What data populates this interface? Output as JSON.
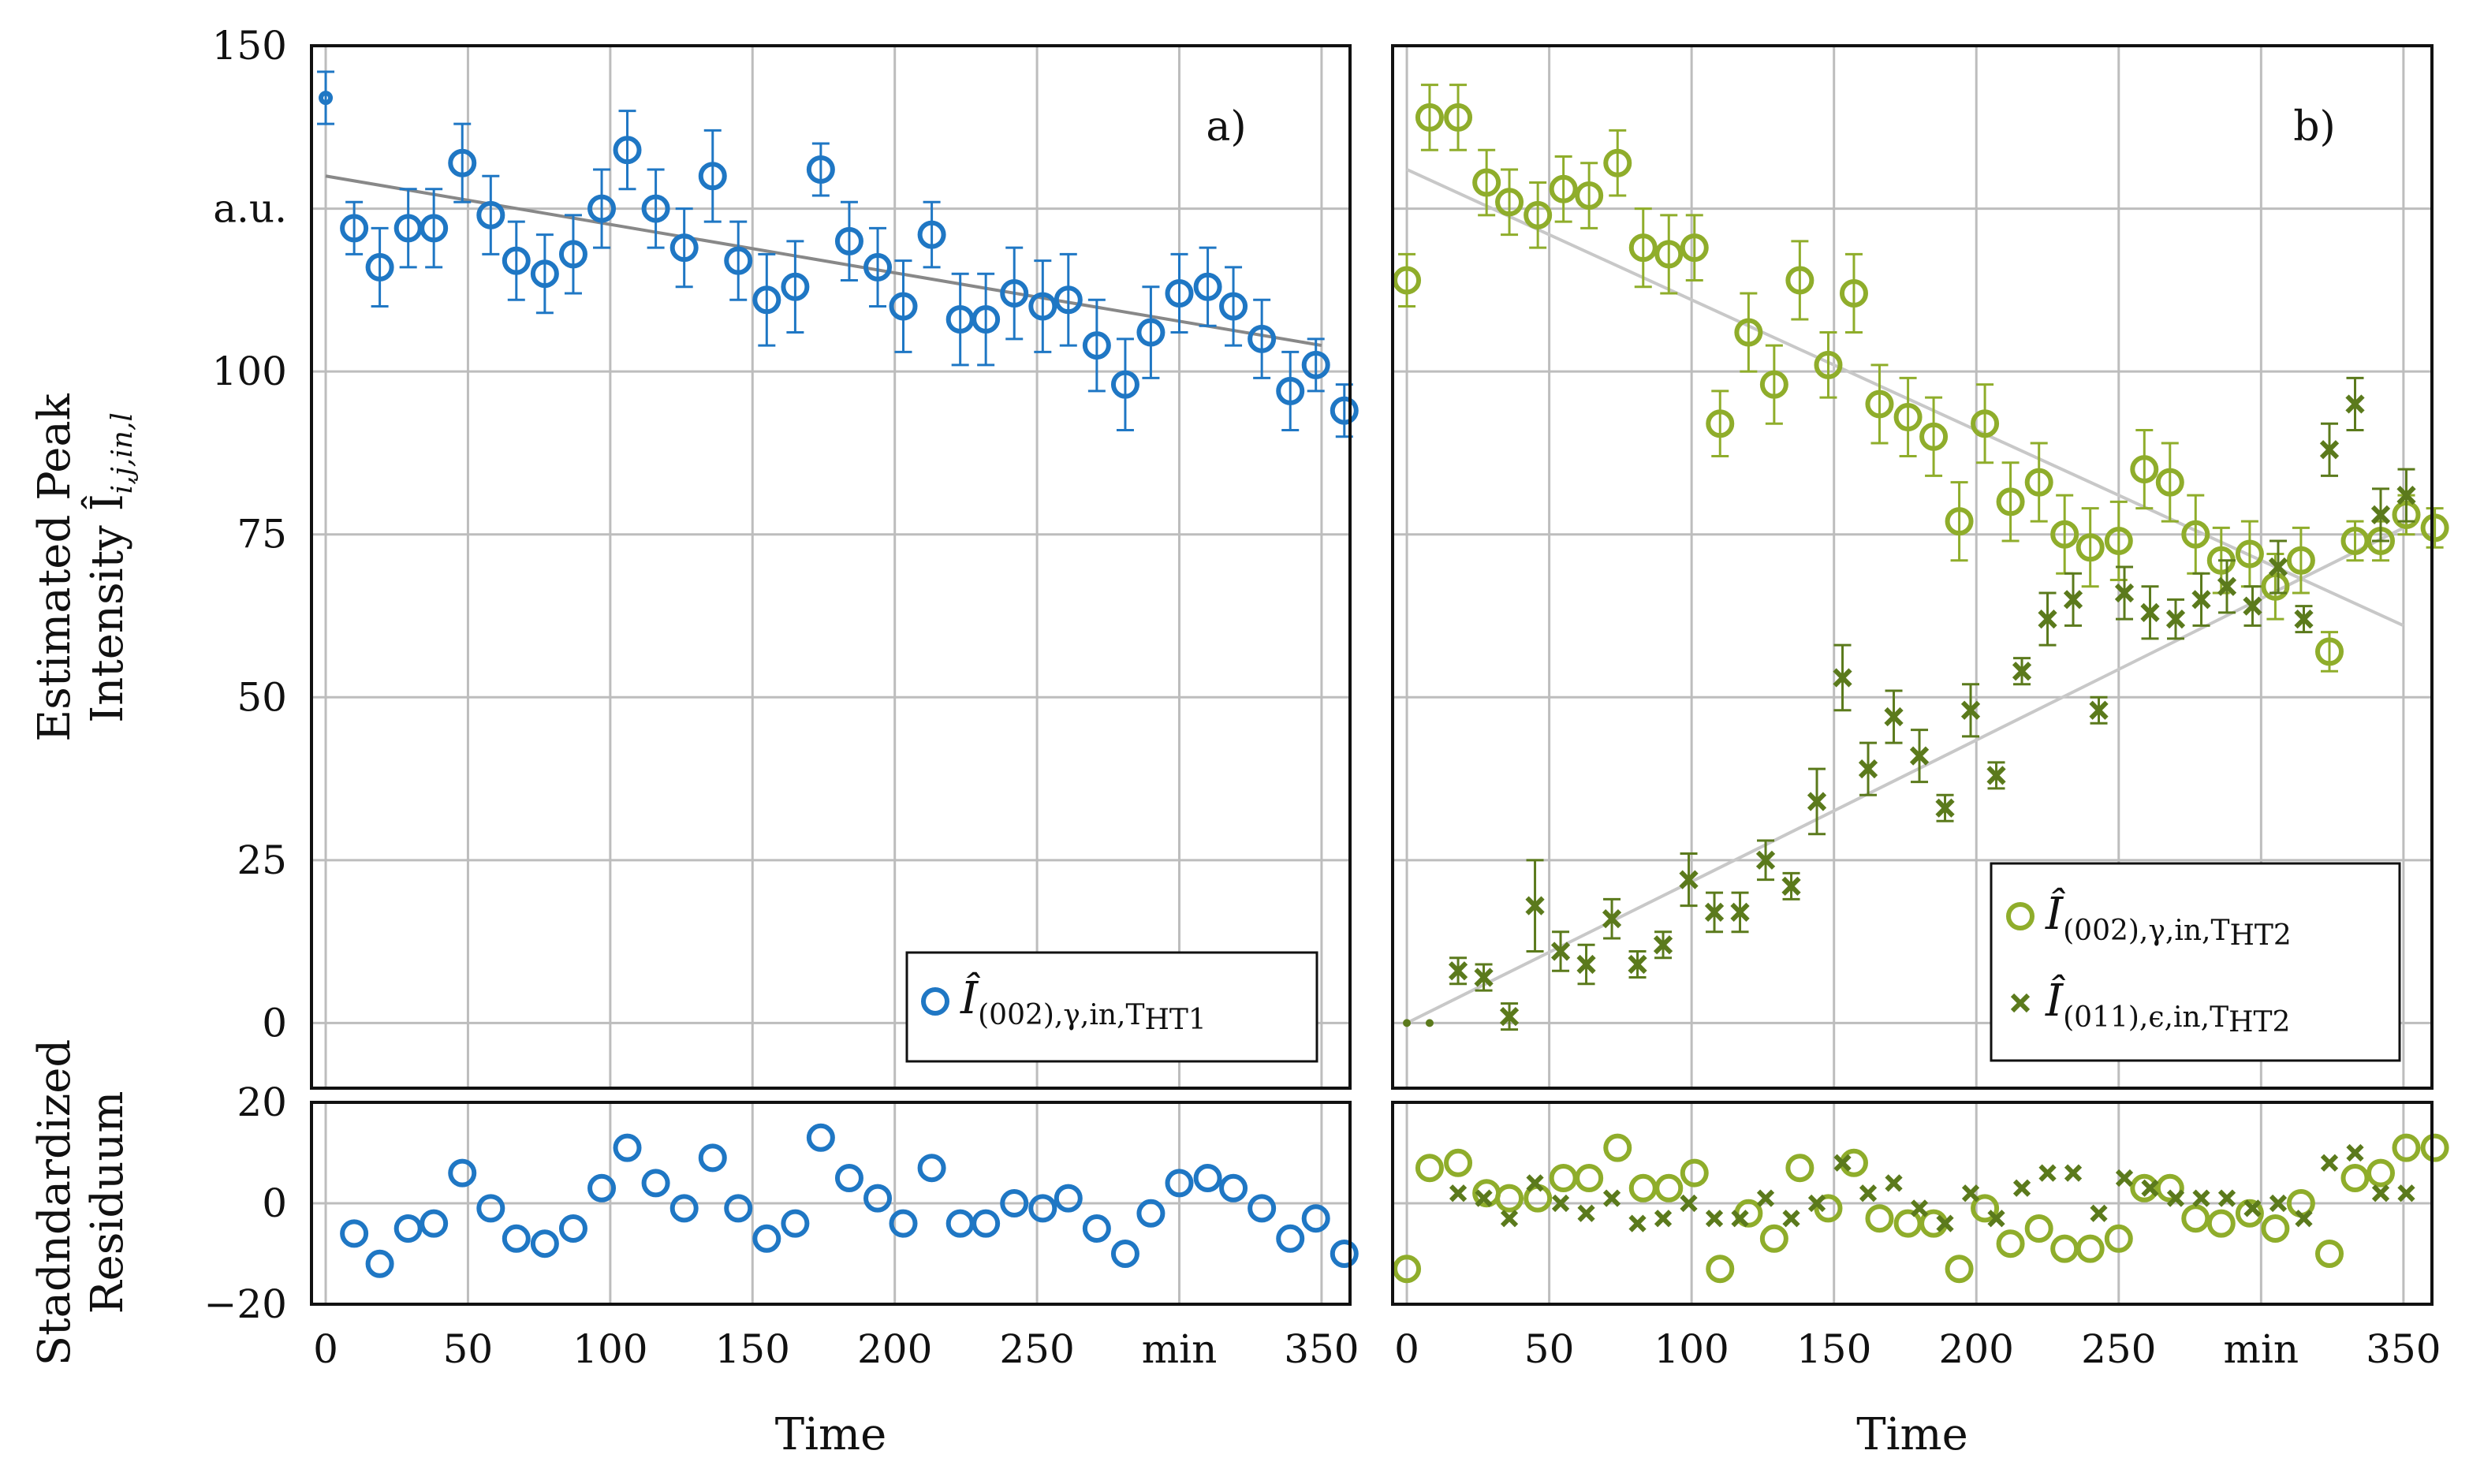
{
  "chart_data": [
    {
      "type": "scatter",
      "panel_label": "a)",
      "xlabel": "Time",
      "x_unit_tick": "min",
      "ylabel_line1": "Estimated Peak",
      "ylabel_line2": "Intensity Î",
      "ylabel_sub": "i,j,in,l",
      "y_unit_tick": "a.u.",
      "xlim": [
        -5,
        360
      ],
      "ylim": [
        -10,
        150
      ],
      "xticks": [
        "0",
        "50",
        "100",
        "150",
        "200",
        "250",
        "min",
        "350"
      ],
      "yticks": [
        "0",
        "25",
        "50",
        "75",
        "100",
        "a.u.",
        "150"
      ],
      "residual_ylabel_line1": "Stadndardized",
      "residual_ylabel_line2": "Residuum",
      "residual_ylim": [
        -20,
        20
      ],
      "residual_yticks": [
        "−20",
        "0",
        "20"
      ],
      "legend_position": "bottom-right",
      "series": [
        {
          "name": "Î(002),γ,in,THT1",
          "legend_main": "Î",
          "legend_sub": "(002),γ,in,T",
          "legend_subsub": "HT1",
          "marker": "circle",
          "color": "#1f77c4",
          "x": [
            0,
            10,
            19,
            29,
            38,
            48,
            58,
            67,
            77,
            87,
            97,
            106,
            116,
            126,
            136,
            145,
            155,
            165,
            174,
            184,
            194,
            203,
            213,
            223,
            232,
            242,
            252,
            261,
            271,
            281,
            290,
            300,
            310,
            319,
            329,
            339,
            348,
            358
          ],
          "y": [
            142,
            122,
            116,
            122,
            122,
            132,
            124,
            117,
            115,
            118,
            125,
            134,
            125,
            119,
            130,
            117,
            111,
            113,
            131,
            120,
            116,
            110,
            121,
            108,
            108,
            112,
            110,
            111,
            104,
            98,
            106,
            112,
            113,
            110,
            105,
            97,
            101,
            94
          ],
          "err": [
            4,
            4,
            6,
            6,
            6,
            6,
            6,
            6,
            6,
            6,
            6,
            6,
            6,
            6,
            7,
            6,
            7,
            7,
            4,
            6,
            6,
            7,
            5,
            7,
            7,
            7,
            7,
            7,
            7,
            7,
            7,
            6,
            6,
            6,
            6,
            6,
            4,
            4
          ],
          "residuals": [
            null,
            -6,
            -12,
            -5,
            -4,
            6,
            -1,
            -7,
            -8,
            -5,
            3,
            11,
            4,
            -1,
            9,
            -1,
            -7,
            -4,
            13,
            5,
            1,
            -4,
            7,
            -4,
            -4,
            0,
            -1,
            1,
            -5,
            -10,
            -2,
            4,
            5,
            3,
            -1,
            -7,
            -3,
            -10
          ],
          "fit_line": {
            "x": [
              0,
              350
            ],
            "y": [
              130,
              104
            ]
          }
        }
      ]
    },
    {
      "type": "scatter",
      "panel_label": "b)",
      "xlabel": "Time",
      "x_unit_tick": "min",
      "xlim": [
        -5,
        360
      ],
      "ylim": [
        -10,
        150
      ],
      "xticks": [
        "0",
        "50",
        "100",
        "150",
        "200",
        "250",
        "min",
        "350"
      ],
      "residual_ylim": [
        -20,
        20
      ],
      "legend_position": "bottom-right",
      "series": [
        {
          "name": "Î(002),γ,in,THT2",
          "legend_main": "Î",
          "legend_sub": "(002),γ,in,T",
          "legend_subsub": "HT2",
          "marker": "circle",
          "color": "#8fad2b",
          "x": [
            0,
            8,
            18,
            28,
            36,
            46,
            55,
            64,
            74,
            83,
            92,
            101,
            110,
            120,
            129,
            138,
            148,
            157,
            166,
            176,
            185,
            194,
            203,
            212,
            222,
            231,
            240,
            250,
            259,
            268,
            277,
            286,
            296,
            305,
            314,
            324,
            333,
            342,
            351,
            361
          ],
          "y": [
            114,
            139,
            139,
            129,
            126,
            124,
            128,
            127,
            132,
            119,
            118,
            119,
            92,
            106,
            98,
            114,
            101,
            112,
            95,
            93,
            90,
            77,
            92,
            80,
            83,
            75,
            73,
            74,
            85,
            83,
            75,
            71,
            72,
            67,
            71,
            57,
            74,
            74,
            78,
            76
          ],
          "err": [
            4,
            5,
            5,
            5,
            5,
            5,
            5,
            5,
            5,
            6,
            6,
            5,
            5,
            6,
            6,
            6,
            5,
            6,
            6,
            6,
            6,
            6,
            6,
            6,
            6,
            6,
            6,
            6,
            6,
            6,
            6,
            5,
            5,
            5,
            5,
            3,
            3,
            3,
            3,
            3
          ],
          "residuals": [
            -13,
            7,
            8,
            2,
            1,
            1,
            5,
            5,
            11,
            3,
            3,
            6,
            -13,
            -2,
            -7,
            7,
            -1,
            8,
            -3,
            -4,
            -4,
            -13,
            -1,
            -8,
            -5,
            -9,
            -9,
            -7,
            3,
            3,
            -3,
            -4,
            -2,
            -5,
            0,
            -10,
            5,
            6,
            11,
            11
          ],
          "fit_line": {
            "x": [
              0,
              350
            ],
            "y": [
              131,
              61
            ]
          }
        },
        {
          "name": "Î(011),ε,in,THT2",
          "legend_main": "Î",
          "legend_sub": "(011),ϵ,in,T",
          "legend_subsub": "HT2",
          "marker": "x",
          "color": "#5b7a1c",
          "x": [
            0,
            8,
            18,
            27,
            36,
            45,
            54,
            63,
            72,
            81,
            90,
            99,
            108,
            117,
            126,
            135,
            144,
            153,
            162,
            171,
            180,
            189,
            198,
            207,
            216,
            225,
            234,
            243,
            252,
            261,
            270,
            279,
            288,
            297,
            306,
            315,
            324,
            333,
            342,
            351
          ],
          "y": [
            0,
            0,
            8,
            7,
            1,
            18,
            11,
            9,
            16,
            9,
            12,
            22,
            17,
            17,
            25,
            21,
            34,
            53,
            39,
            47,
            41,
            33,
            48,
            38,
            54,
            62,
            65,
            48,
            66,
            63,
            62,
            65,
            67,
            64,
            70,
            62,
            88,
            95,
            78,
            81
          ],
          "err": [
            0.5,
            0.5,
            2,
            2,
            2,
            7,
            3,
            3,
            3,
            2,
            2,
            4,
            3,
            3,
            3,
            2,
            5,
            5,
            4,
            4,
            4,
            2,
            4,
            2,
            2,
            4,
            4,
            2,
            4,
            4,
            3,
            4,
            4,
            3,
            4,
            2,
            4,
            4,
            4,
            4
          ],
          "residuals": [
            null,
            null,
            2,
            1,
            -3,
            4,
            0,
            -2,
            1,
            -4,
            -3,
            0,
            -3,
            -3,
            1,
            -3,
            0,
            8,
            2,
            4,
            -1,
            -4,
            2,
            -3,
            3,
            6,
            6,
            -2,
            5,
            3,
            1,
            1,
            1,
            -1,
            0,
            -3,
            8,
            10,
            2,
            2
          ],
          "fit_line": {
            "x": [
              0,
              350
            ],
            "y": [
              0,
              76
            ]
          }
        }
      ]
    }
  ]
}
